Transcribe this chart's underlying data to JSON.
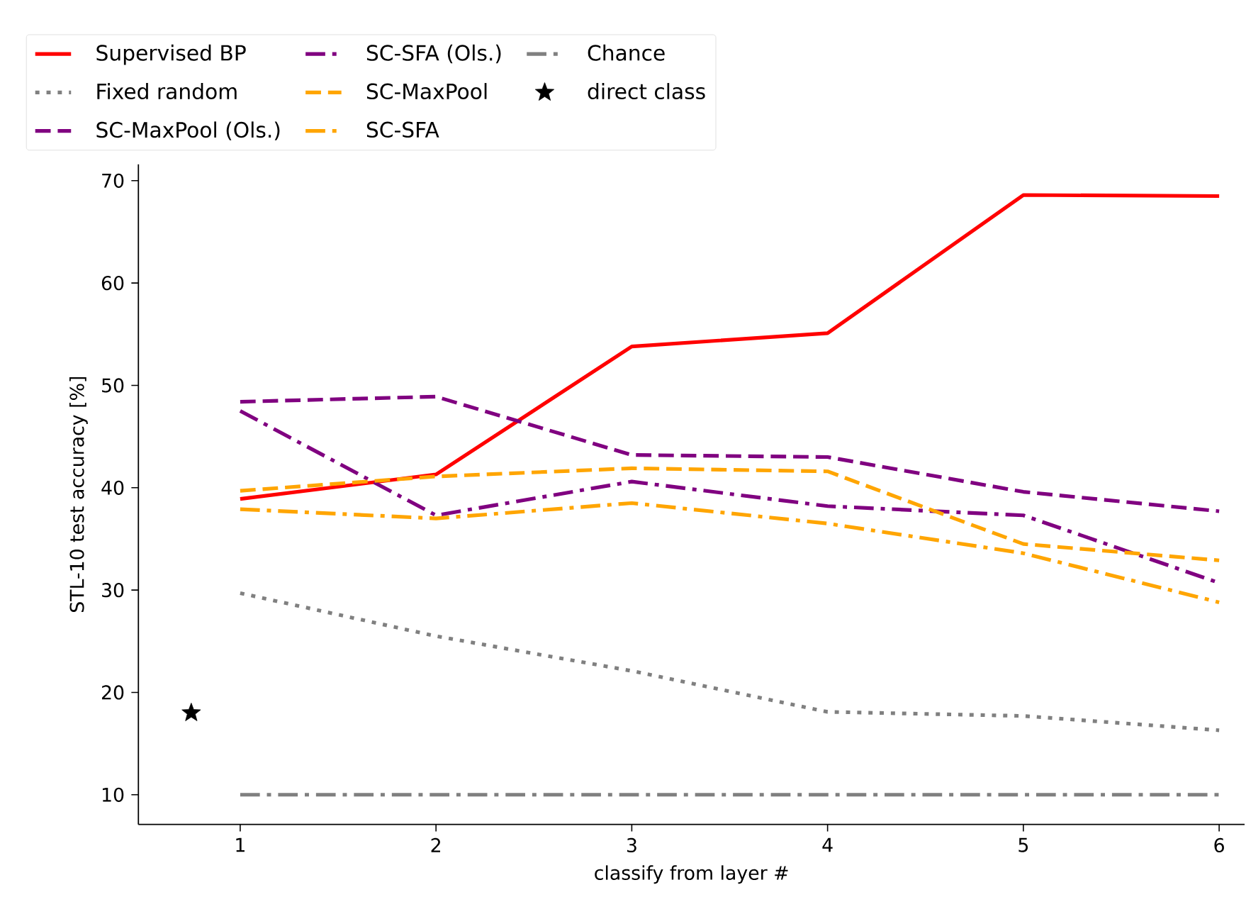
{
  "chart_data": {
    "type": "line",
    "xlabel": "classify from layer #",
    "ylabel": "STL-10 test accuracy [%]",
    "xlim": [
      0.48,
      6.13
    ],
    "ylim": [
      7.1,
      71.6
    ],
    "xticks": [
      1,
      2,
      3,
      4,
      5,
      6
    ],
    "yticks": [
      10,
      20,
      30,
      40,
      50,
      60,
      70
    ],
    "grid": false,
    "legend": "top left",
    "series": [
      {
        "name": "Supervised BP",
        "color": "#ff0000",
        "line_style": "solid",
        "x": [
          1,
          2,
          3,
          4,
          5,
          6
        ],
        "values": [
          38.9,
          41.3,
          53.8,
          55.1,
          68.6,
          68.5
        ]
      },
      {
        "name": "Fixed random",
        "color": "#808080",
        "line_style": "dotted",
        "x": [
          1,
          2,
          3,
          4,
          5,
          6
        ],
        "values": [
          29.7,
          25.5,
          22.1,
          18.1,
          17.7,
          16.3
        ]
      },
      {
        "name": "SC-MaxPool (Ols.)",
        "color": "#800080",
        "line_style": "dashed",
        "x": [
          1,
          2,
          3,
          4,
          5,
          6
        ],
        "values": [
          48.4,
          48.9,
          43.2,
          43.0,
          39.6,
          37.7
        ]
      },
      {
        "name": "SC-SFA (Ols.)",
        "color": "#800080",
        "line_style": "dashdot",
        "x": [
          1,
          2,
          3,
          4,
          5,
          6
        ],
        "values": [
          47.5,
          37.3,
          40.6,
          38.2,
          37.3,
          30.7
        ]
      },
      {
        "name": "SC-MaxPool",
        "color": "#ffa500",
        "line_style": "dashed",
        "x": [
          1,
          2,
          3,
          4,
          5,
          6
        ],
        "values": [
          39.7,
          41.1,
          41.9,
          41.6,
          34.5,
          32.9
        ]
      },
      {
        "name": "SC-SFA",
        "color": "#ffa500",
        "line_style": "dashdot",
        "x": [
          1,
          2,
          3,
          4,
          5,
          6
        ],
        "values": [
          37.9,
          37.0,
          38.5,
          36.5,
          33.6,
          28.8
        ]
      },
      {
        "name": "Chance",
        "color": "#808080",
        "line_style": "dashdot",
        "x": [
          1,
          2,
          3,
          4,
          5,
          6
        ],
        "values": [
          10,
          10,
          10,
          10,
          10,
          10
        ]
      },
      {
        "name": "direct class",
        "type": "scatter",
        "marker": "star",
        "color": "#000000",
        "x": [
          0.75
        ],
        "values": [
          18.0
        ]
      }
    ]
  }
}
